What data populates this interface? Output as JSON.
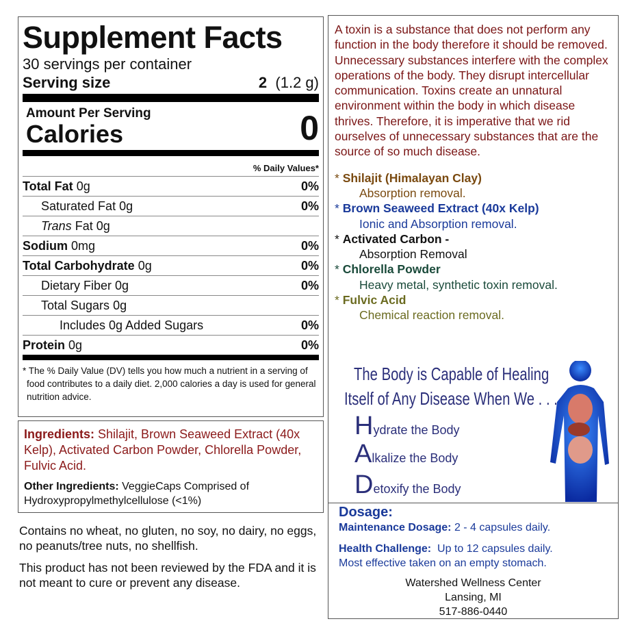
{
  "facts": {
    "title": "Supplement Facts",
    "servings": "30 servings per container",
    "serving_label": "Serving size",
    "serving_qty": "2",
    "serving_weight": "(1.2 g)",
    "amount_per_serving": "Amount Per Serving",
    "calories_label": "Calories",
    "calories_value": "0",
    "daily_values_header": "% Daily Values*",
    "rows": [
      {
        "name": "Total Fat",
        "amount": "0g",
        "pct": "0%",
        "bold": true,
        "indent": 0
      },
      {
        "name": "Saturated Fat",
        "amount": "0g",
        "pct": "0%",
        "bold": false,
        "indent": 1
      },
      {
        "name": "Trans",
        "name_suffix": "Fat",
        "amount": "0g",
        "pct": "",
        "bold": false,
        "indent": 1,
        "italic": true
      },
      {
        "name": "Sodium",
        "amount": "0mg",
        "pct": "0%",
        "bold": true,
        "indent": 0
      },
      {
        "name": "Total Carbohydrate",
        "amount": "0g",
        "pct": "0%",
        "bold": true,
        "indent": 0
      },
      {
        "name": "Dietary Fiber",
        "amount": "0g",
        "pct": "0%",
        "bold": false,
        "indent": 1
      },
      {
        "name": "Total Sugars",
        "amount": "0g",
        "pct": "",
        "bold": false,
        "indent": 1
      },
      {
        "name": "Includes 0g Added Sugars",
        "amount": "",
        "pct": "0%",
        "bold": false,
        "indent": 2
      },
      {
        "name": "Protein",
        "amount": "0g",
        "pct": "0%",
        "bold": true,
        "indent": 0
      }
    ],
    "footnote": "* The % Daily Value (DV) tells you how much a nutrient in a serving of food contributes to a daily diet. 2,000 calories a day is used for general nutrition advice."
  },
  "ingredients": {
    "label": "Ingredients:",
    "text": "Shilajit, Brown Seaweed Extract (40x Kelp), Activated Carbon Powder, Chlorella Powder, Fulvic Acid.",
    "other_label": "Other Ingredients:",
    "other_text": "VeggieCaps Comprised of Hydroxypropylmethylcellulose  (<1%)"
  },
  "allergen": "Contains no wheat, no gluten, no soy, no dairy, no eggs, no peanuts/tree nuts, no shellfish.",
  "disclaimer": "This product has not been reviewed by the FDA and it is not meant to cure or prevent any disease.",
  "toxin_text": "A toxin is a substance that does not perform any function in the body therefore it should be removed.  Unnecessary substances interfere with the complex operations of the body. They disrupt intercellular communication. Toxins create an unnatural environment within the body in which disease thrives. Therefore, it is imperative that we rid ourselves of unnecessary substances that are the source of so much disease.",
  "components": [
    {
      "name": "Shilajit (Himalayan Clay)",
      "desc": "Absorption removal.",
      "color": "#7a4a10"
    },
    {
      "name": "Brown Seaweed Extract (40x Kelp)",
      "desc": "Ionic and Absorption removal.",
      "color": "#1a3a9a"
    },
    {
      "name": "Activated Carbon -",
      "desc": "Absorption Removal",
      "color": "#111111"
    },
    {
      "name": "Chlorella Powder",
      "desc": "Heavy metal, synthetic toxin removal.",
      "color": "#1a4a3a"
    },
    {
      "name": "Fulvic Acid",
      "desc": "Chemical reaction removal.",
      "color": "#6b6b20"
    }
  ],
  "healing": {
    "line1": "The Body is Capable of Healing",
    "line2": "Itself of Any Disease When We . . .",
    "h_initial": "H",
    "h_rest": "ydrate the Body",
    "a_initial": "A",
    "a_rest": "lkalize the Body",
    "d_initial": "D",
    "d_rest": "etoxify the Body"
  },
  "dosage": {
    "title": "Dosage:",
    "maint_label": "Maintenance Dosage:",
    "maint_text": "2 - 4 capsules daily.",
    "hc_label": "Health Challenge:",
    "hc_text": "Up to 12  capsules daily.",
    "note": "Most effective taken on an empty stomach."
  },
  "company": {
    "name": "Watershed Wellness Center",
    "city": "Lansing, MI",
    "phone": "517-886-0440"
  }
}
